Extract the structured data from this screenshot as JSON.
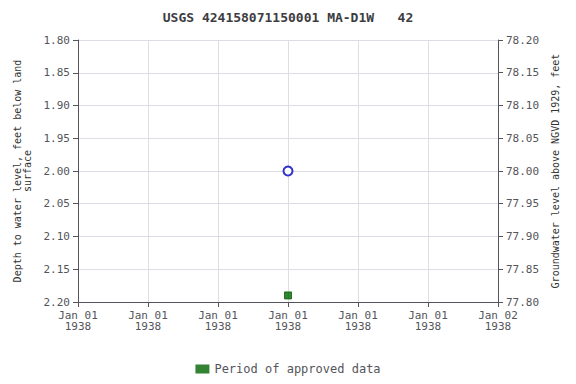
{
  "chart_data": {
    "type": "scatter",
    "title": "USGS 424158071150001 MA-D1W   42",
    "ylabel": "Depth to water level, feet below land\nsurface",
    "y2label": "Groundwater level above NGVD 1929, feet",
    "categories": [
      "Jan 01\n1938",
      "Jan 01\n1938",
      "Jan 01\n1938",
      "Jan 01\n1938",
      "Jan 01\n1938",
      "Jan 01\n1938",
      "Jan 02\n1938"
    ],
    "series": [
      {
        "values": [
          null,
          null,
          null,
          2.0,
          null,
          null,
          null
        ],
        "color": "#0000bb",
        "marker": "open circle"
      },
      {
        "name": "Period of approved data",
        "values": [
          null,
          null,
          null,
          2.19,
          null,
          null,
          null
        ],
        "color": "#006400",
        "marker": "square"
      }
    ],
    "ylim": [
      2.2,
      1.8
    ],
    "yticks": [
      {
        "value": 1.8,
        "label": "1.80"
      },
      {
        "value": 1.85,
        "label": "1.85"
      },
      {
        "value": 1.9,
        "label": "1.90"
      },
      {
        "value": 1.95,
        "label": "1.95"
      },
      {
        "value": 2.0,
        "label": "2.00"
      },
      {
        "value": 2.05,
        "label": "2.05"
      },
      {
        "value": 2.1,
        "label": "2.10"
      },
      {
        "value": 2.15,
        "label": "2.15"
      },
      {
        "value": 2.2,
        "label": "2.20"
      }
    ],
    "y2lim": [
      77.8,
      78.2
    ],
    "y2ticks": [
      {
        "value": 77.8,
        "label": "77.80"
      },
      {
        "value": 77.85,
        "label": "77.85"
      },
      {
        "value": 77.9,
        "label": "77.90"
      },
      {
        "value": 77.95,
        "label": "77.95"
      },
      {
        "value": 78.0,
        "label": "78.00"
      },
      {
        "value": 78.05,
        "label": "78.05"
      },
      {
        "value": 78.1,
        "label": "78.10"
      },
      {
        "value": 78.15,
        "label": "78.15"
      },
      {
        "value": 78.2,
        "label": "78.20"
      }
    ],
    "grid": true,
    "legend": "bottom"
  }
}
